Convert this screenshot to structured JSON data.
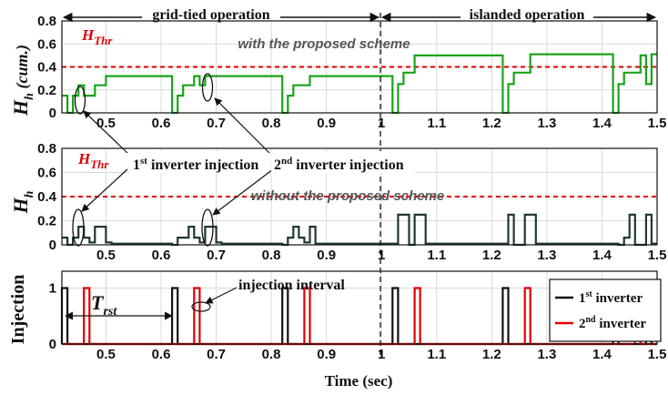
{
  "chart_data": [
    {
      "type": "line",
      "panel": "top",
      "ylabel_main": "H",
      "ylabel_sub": "h",
      "ylabel_suffix": "(cum.)",
      "xlim": [
        0.42,
        1.5
      ],
      "ylim": [
        0,
        0.8
      ],
      "yticks": [
        "0",
        "0.2",
        "0.4",
        "0.6",
        "0.8"
      ],
      "xticks": [
        "0.5",
        "0.6",
        "0.7",
        "0.8",
        "0.9",
        "1",
        "1.1",
        "1.2",
        "1.3",
        "1.4",
        "1.5"
      ],
      "threshold": {
        "label_main": "H",
        "label_sub": "Thr",
        "value": 0.4,
        "color": "#e00000"
      },
      "annotation": "with the proposed scheme",
      "series": [
        {
          "color": "#1aa31a",
          "x": [
            0.42,
            0.43,
            0.43,
            0.44,
            0.44,
            0.45,
            0.45,
            0.46,
            0.46,
            0.48,
            0.48,
            0.5,
            0.5,
            0.62,
            0.62,
            0.63,
            0.63,
            0.64,
            0.64,
            0.66,
            0.66,
            0.67,
            0.67,
            0.68,
            0.68,
            0.82,
            0.82,
            0.83,
            0.83,
            0.84,
            0.84,
            0.87,
            0.87,
            1.02,
            1.02,
            1.03,
            1.03,
            1.04,
            1.04,
            1.06,
            1.06,
            1.22,
            1.22,
            1.23,
            1.23,
            1.24,
            1.24,
            1.27,
            1.27,
            1.42,
            1.42,
            1.43,
            1.43,
            1.44,
            1.44,
            1.47,
            1.47,
            1.48,
            1.48,
            1.49,
            1.49,
            1.5
          ],
          "y": [
            0.15,
            0.15,
            0.0,
            0.0,
            0.15,
            0.15,
            0.24,
            0.24,
            0.15,
            0.15,
            0.24,
            0.24,
            0.32,
            0.32,
            0.0,
            0.0,
            0.15,
            0.15,
            0.24,
            0.24,
            0.32,
            0.32,
            0.24,
            0.24,
            0.32,
            0.32,
            0.0,
            0.0,
            0.15,
            0.15,
            0.24,
            0.24,
            0.32,
            0.32,
            0.0,
            0.0,
            0.25,
            0.25,
            0.35,
            0.35,
            0.5,
            0.5,
            0.0,
            0.0,
            0.25,
            0.25,
            0.35,
            0.35,
            0.51,
            0.51,
            0.0,
            0.0,
            0.25,
            0.25,
            0.35,
            0.35,
            0.5,
            0.5,
            0.25,
            0.25,
            0.51,
            0.51
          ]
        }
      ]
    },
    {
      "type": "line",
      "panel": "middle",
      "ylabel_main": "H",
      "ylabel_sub": "h",
      "xlim": [
        0.42,
        1.5
      ],
      "ylim": [
        0,
        0.8
      ],
      "yticks": [
        "0",
        "0.2",
        "0.4",
        "0.6",
        "0.8"
      ],
      "xticks": [
        "0.5",
        "0.6",
        "0.7",
        "0.8",
        "0.9",
        "1",
        "1.1",
        "1.2",
        "1.3",
        "1.4",
        "1.5"
      ],
      "threshold": {
        "label_main": "H",
        "label_sub": "Thr",
        "value": 0.4,
        "color": "#e00000"
      },
      "annotation": "without the proposed scheme",
      "series": [
        {
          "color": "#1f3a2c",
          "x": [
            0.42,
            0.43,
            0.43,
            0.44,
            0.44,
            0.45,
            0.45,
            0.46,
            0.46,
            0.47,
            0.47,
            0.48,
            0.48,
            0.5,
            0.5,
            0.51,
            0.51,
            0.62,
            0.62,
            0.63,
            0.63,
            0.64,
            0.64,
            0.65,
            0.65,
            0.66,
            0.66,
            0.67,
            0.67,
            0.68,
            0.68,
            0.7,
            0.7,
            0.71,
            0.71,
            0.82,
            0.82,
            0.83,
            0.83,
            0.84,
            0.84,
            0.85,
            0.85,
            0.86,
            0.86,
            0.87,
            0.87,
            0.88,
            0.88,
            1.03,
            1.03,
            1.05,
            1.05,
            1.06,
            1.06,
            1.08,
            1.08,
            1.23,
            1.23,
            1.24,
            1.24,
            1.26,
            1.26,
            1.28,
            1.28,
            1.43,
            1.43,
            1.44,
            1.44,
            1.45,
            1.45,
            1.46,
            1.46,
            1.48,
            1.48,
            1.49,
            1.49,
            1.5
          ],
          "y": [
            0.06,
            0.06,
            0.0,
            0.0,
            0.06,
            0.06,
            0.15,
            0.15,
            0.06,
            0.06,
            0.02,
            0.02,
            0.15,
            0.15,
            0.02,
            0.02,
            0.01,
            0.01,
            0.0,
            0.0,
            0.06,
            0.06,
            0.06,
            0.06,
            0.15,
            0.15,
            0.06,
            0.06,
            0.02,
            0.02,
            0.15,
            0.15,
            0.02,
            0.02,
            0.01,
            0.01,
            0.0,
            0.0,
            0.06,
            0.06,
            0.15,
            0.15,
            0.06,
            0.06,
            0.02,
            0.02,
            0.15,
            0.15,
            0.01,
            0.01,
            0.25,
            0.25,
            0.0,
            0.0,
            0.25,
            0.25,
            0.01,
            0.01,
            0.25,
            0.25,
            0.0,
            0.0,
            0.25,
            0.25,
            0.01,
            0.01,
            0.0,
            0.0,
            0.06,
            0.06,
            0.25,
            0.25,
            0.0,
            0.0,
            0.25,
            0.25,
            0.01,
            0.01
          ]
        }
      ]
    },
    {
      "type": "line",
      "panel": "bottom",
      "ylabel": "Injection",
      "xlabel": "Time (sec)",
      "xlim": [
        0.42,
        1.5
      ],
      "ylim": [
        0,
        1.3
      ],
      "yticks": [
        "0",
        "1"
      ],
      "xticks": [
        "0.5",
        "0.6",
        "0.7",
        "0.8",
        "0.9",
        "1",
        "1.1",
        "1.2",
        "1.3",
        "1.4",
        "1.5"
      ],
      "annotations": {
        "trst_main": "T",
        "trst_sub": "rst",
        "interval": "injection interval"
      },
      "legend_position": "right",
      "series": [
        {
          "name_main": "1",
          "name_sup": "st",
          "name_rest": " inverter",
          "color": "#111111",
          "pulses": [
            [
              0.42,
              0.43
            ],
            [
              0.62,
              0.63
            ],
            [
              0.82,
              0.83
            ],
            [
              1.02,
              1.03
            ],
            [
              1.22,
              1.23
            ],
            [
              1.42,
              1.43
            ],
            [
              1.48,
              1.49
            ]
          ]
        },
        {
          "name_main": "2",
          "name_sup": "nd",
          "name_rest": " inverter",
          "color": "#e00000",
          "pulses": [
            [
              0.46,
              0.47
            ],
            [
              0.66,
              0.67
            ],
            [
              0.86,
              0.87
            ],
            [
              1.06,
              1.07
            ],
            [
              1.26,
              1.27
            ],
            [
              1.46,
              1.47
            ]
          ]
        }
      ]
    }
  ],
  "labels": {
    "grid_tied": "grid-tied operation",
    "islanded": "islanded operation",
    "inj1_main": "1",
    "inj1_sup": "st",
    "inj1_rest": " inverter injection",
    "inj2_main": "2",
    "inj2_sup": "nd",
    "inj2_rest": " inverter injection"
  }
}
